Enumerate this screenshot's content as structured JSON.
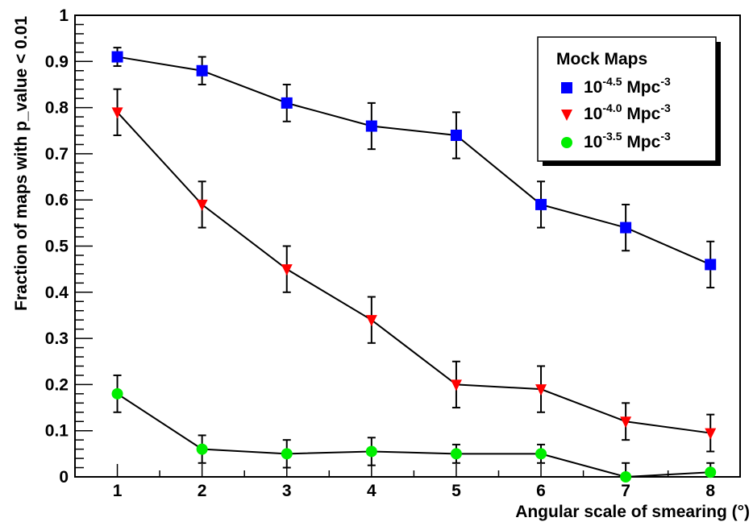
{
  "chart_data": {
    "type": "scatter",
    "title": "",
    "xlabel": "Angular scale of smearing (°)",
    "ylabel": "Fraction of maps with p_value < 0.01",
    "xlim": [
      0.5,
      8.35
    ],
    "ylim": [
      0,
      1
    ],
    "x_ticks": [
      "1",
      "2",
      "3",
      "4",
      "5",
      "6",
      "7",
      "8"
    ],
    "y_ticks": [
      "0",
      "0.1",
      "0.2",
      "0.3",
      "0.4",
      "0.5",
      "0.6",
      "0.7",
      "0.8",
      "0.9",
      "1"
    ],
    "grid": false,
    "legend": {
      "title": "Mock Maps",
      "position": "top-right",
      "entries": [
        {
          "base": "10",
          "exp": "-4.5",
          "unit": "Mpc",
          "unit_exp": "-3"
        },
        {
          "base": "10",
          "exp": "-4.0",
          "unit": "Mpc",
          "unit_exp": "-3"
        },
        {
          "base": "10",
          "exp": "-3.5",
          "unit": "Mpc",
          "unit_exp": "-3"
        }
      ]
    },
    "x": [
      1,
      2,
      3,
      4,
      5,
      6,
      7,
      8
    ],
    "series": [
      {
        "name": "10^-4.5 Mpc^-3",
        "marker": "square",
        "color": "#0000ff",
        "values": [
          0.91,
          0.88,
          0.81,
          0.76,
          0.74,
          0.59,
          0.54,
          0.46
        ],
        "err_low": [
          0.02,
          0.03,
          0.04,
          0.05,
          0.05,
          0.05,
          0.05,
          0.05
        ],
        "err_high": [
          0.02,
          0.03,
          0.04,
          0.05,
          0.05,
          0.05,
          0.05,
          0.05
        ]
      },
      {
        "name": "10^-4.0 Mpc^-3",
        "marker": "triangle-down",
        "color": "#ff0000",
        "values": [
          0.79,
          0.59,
          0.45,
          0.34,
          0.2,
          0.19,
          0.12,
          0.095
        ],
        "err_low": [
          0.05,
          0.05,
          0.05,
          0.05,
          0.05,
          0.05,
          0.04,
          0.04
        ],
        "err_high": [
          0.05,
          0.05,
          0.05,
          0.05,
          0.05,
          0.05,
          0.04,
          0.04
        ]
      },
      {
        "name": "10^-3.5 Mpc^-3",
        "marker": "circle",
        "color": "#00ee00",
        "values": [
          0.18,
          0.06,
          0.05,
          0.055,
          0.05,
          0.05,
          0.0,
          0.01
        ],
        "err_low": [
          0.04,
          0.03,
          0.03,
          0.03,
          0.02,
          0.02,
          0.0,
          0.01
        ],
        "err_high": [
          0.04,
          0.03,
          0.03,
          0.03,
          0.02,
          0.02,
          0.03,
          0.02
        ]
      }
    ]
  }
}
